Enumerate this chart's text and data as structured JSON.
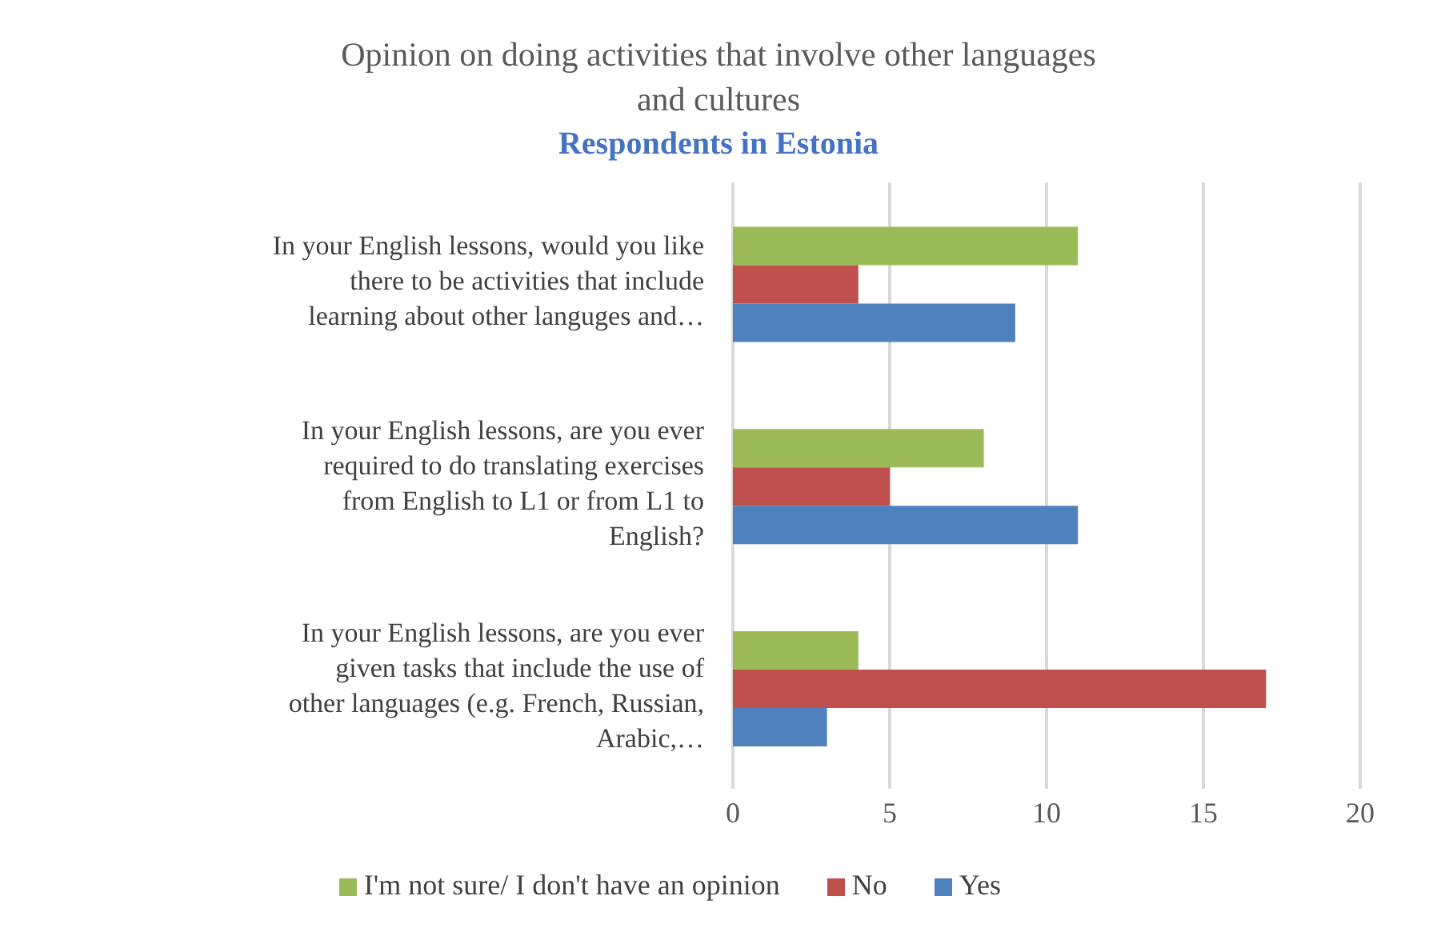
{
  "chart_data": {
    "type": "bar",
    "orientation": "horizontal",
    "title": "Opinion on doing activities that involve other languages and cultures",
    "subtitle": "Respondents in Estonia",
    "categories": [
      "In your English lessons, would you like there to be activities that include learning about other languges and…",
      "In your English lessons, are you ever required to do translating exercises from English to L1 or from L1 to English?",
      "In your English lessons, are you ever given tasks that include the use of other languages (e.g. French, Russian, Arabic,…"
    ],
    "series": [
      {
        "name": "I'm not sure/ I don't have an opinion",
        "color": "#9bbb59",
        "values": [
          11,
          8,
          4
        ]
      },
      {
        "name": "No",
        "color": "#c0504d",
        "values": [
          4,
          5,
          17
        ]
      },
      {
        "name": "Yes",
        "color": "#4f81bd",
        "values": [
          9,
          11,
          3
        ]
      }
    ],
    "xlim": [
      0,
      20
    ],
    "xticks": [
      0,
      5,
      10,
      15,
      20
    ],
    "grid": "x",
    "legend": "bottom"
  }
}
